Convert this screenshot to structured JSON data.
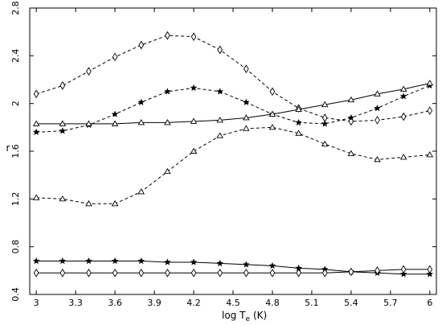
{
  "chart_data": {
    "type": "line",
    "xlabel": "log T",
    "xlabel_subscript": "e",
    "xlabel_units": "(K)",
    "ylabel": "r",
    "xlim": [
      2.95,
      6.05
    ],
    "ylim": [
      0.4,
      2.8
    ],
    "xticks": [
      "3",
      "3.3",
      "3.6",
      "3.9",
      "4.2",
      "4.5",
      "4.8",
      "5.1",
      "5.4",
      "5.7",
      "6"
    ],
    "yticks": [
      "0.4",
      "0.8",
      "1.2",
      "1.6",
      "2",
      "2.4",
      "2.8"
    ],
    "grid": false,
    "x": [
      3.0,
      3.2,
      3.4,
      3.6,
      3.8,
      4.0,
      4.2,
      4.4,
      4.6,
      4.8,
      5.0,
      5.2,
      5.4,
      5.6,
      5.8,
      6.0
    ],
    "series": [
      {
        "marker": "diamond",
        "dash": true,
        "values": [
          2.08,
          2.15,
          2.27,
          2.39,
          2.49,
          2.57,
          2.56,
          2.45,
          2.29,
          2.1,
          1.96,
          1.88,
          1.85,
          1.86,
          1.89,
          1.94
        ]
      },
      {
        "marker": "star",
        "dash": true,
        "values": [
          1.76,
          1.77,
          1.82,
          1.91,
          2.01,
          2.1,
          2.13,
          2.1,
          2.01,
          1.91,
          1.84,
          1.83,
          1.88,
          1.96,
          2.06,
          2.15
        ]
      },
      {
        "marker": "triangle",
        "dash": true,
        "values": [
          1.21,
          1.2,
          1.16,
          1.16,
          1.26,
          1.43,
          1.6,
          1.73,
          1.79,
          1.8,
          1.75,
          1.66,
          1.58,
          1.53,
          1.55,
          1.57
        ]
      },
      {
        "marker": "triangle",
        "dash": false,
        "values": [
          1.83,
          1.83,
          1.83,
          1.83,
          1.84,
          1.84,
          1.85,
          1.86,
          1.88,
          1.91,
          1.95,
          1.99,
          2.03,
          2.08,
          2.12,
          2.17
        ]
      },
      {
        "marker": "star",
        "dash": false,
        "values": [
          0.68,
          0.68,
          0.68,
          0.68,
          0.68,
          0.67,
          0.67,
          0.66,
          0.65,
          0.64,
          0.62,
          0.61,
          0.59,
          0.58,
          0.57,
          0.57
        ]
      },
      {
        "marker": "diamond",
        "dash": false,
        "values": [
          0.58,
          0.58,
          0.58,
          0.58,
          0.58,
          0.58,
          0.58,
          0.58,
          0.58,
          0.58,
          0.58,
          0.58,
          0.59,
          0.6,
          0.61,
          0.61
        ]
      }
    ]
  }
}
